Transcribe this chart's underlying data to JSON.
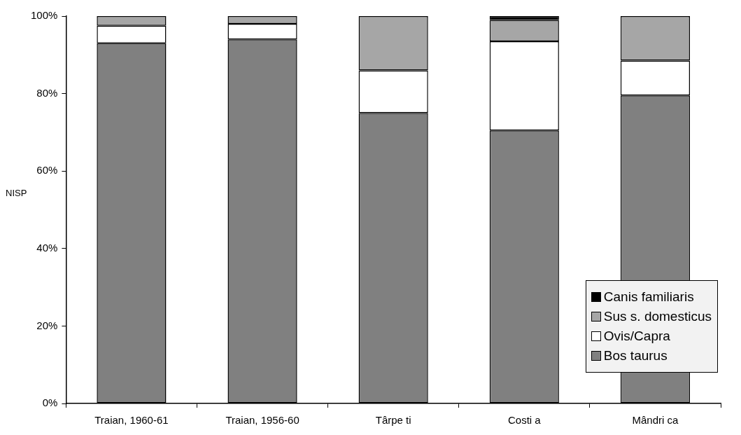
{
  "chart_data": {
    "type": "bar",
    "stacked": true,
    "ylabel": "NISP",
    "categories": [
      "Traian, 1960-61",
      "Traian, 1956-60",
      "Târpe ti",
      "Costi a",
      "Mândri ca"
    ],
    "series": [
      {
        "name": "Bos taurus",
        "color": "#808080",
        "values": [
          93,
          94,
          75,
          70.5,
          79.5
        ]
      },
      {
        "name": "Ovis/Capra",
        "color": "#ffffff",
        "values": [
          4.5,
          4,
          11,
          23,
          9
        ]
      },
      {
        "name": "Sus s. domesticus",
        "color": "#a6a6a6",
        "values": [
          2.5,
          2,
          14,
          5.5,
          11.5
        ]
      },
      {
        "name": "Canis familiaris",
        "color": "#000000",
        "values": [
          null,
          null,
          null,
          1,
          null
        ]
      }
    ],
    "ylim": [
      0,
      100
    ],
    "yticks": [
      {
        "value": 0,
        "label": "0%"
      },
      {
        "value": 20,
        "label": "20%"
      },
      {
        "value": 40,
        "label": "40%"
      },
      {
        "value": 60,
        "label": "60%"
      },
      {
        "value": 80,
        "label": "80%"
      },
      {
        "value": 100,
        "label": "100%"
      }
    ],
    "grid": false,
    "legend": "bottom right"
  }
}
